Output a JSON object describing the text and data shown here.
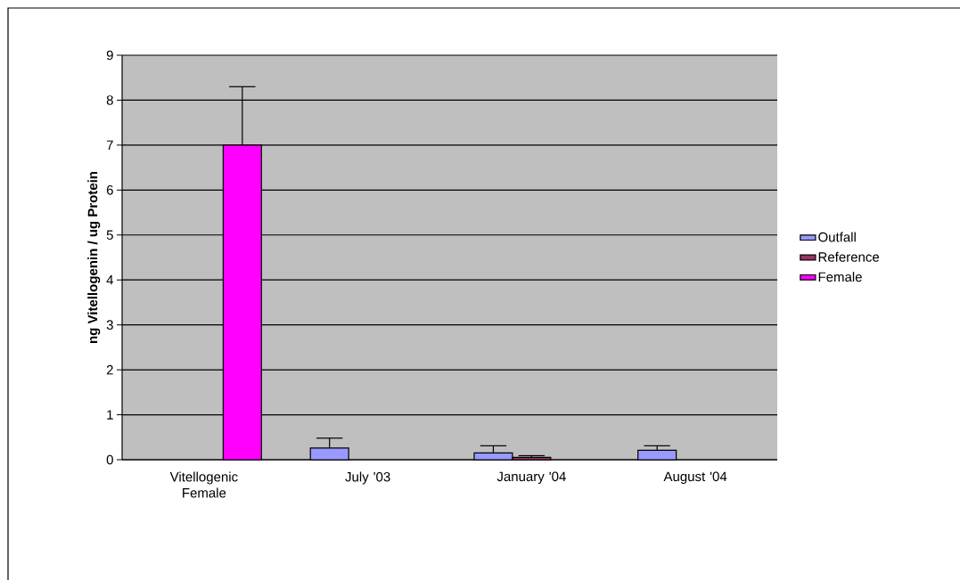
{
  "chart_data": {
    "type": "bar",
    "ylabel": "ng Vitellogenin / ug Protein",
    "categories": [
      "Vitellogenic Female",
      "July '03",
      "January '04",
      "August '04"
    ],
    "series": [
      {
        "name": "Outfall",
        "color": "#9999ff",
        "values": [
          null,
          0.26,
          0.15,
          0.21
        ],
        "errors": [
          null,
          [
            0.26,
            0.48
          ],
          [
            0.15,
            0.31
          ],
          [
            0.21,
            0.31
          ]
        ]
      },
      {
        "name": "Reference",
        "color": "#993366",
        "values": [
          null,
          null,
          0.05,
          null
        ],
        "errors": [
          null,
          null,
          [
            0.05,
            0.09
          ],
          null
        ]
      },
      {
        "name": "Female",
        "color": "#ff00ff",
        "values": [
          7,
          null,
          null,
          null
        ],
        "errors": [
          [
            7,
            8.3
          ],
          null,
          null,
          null
        ]
      }
    ],
    "ylim": [
      0,
      9
    ],
    "yticks": [
      0,
      1,
      2,
      3,
      4,
      5,
      6,
      7,
      8,
      9
    ],
    "grid": "y",
    "legend": "right"
  }
}
